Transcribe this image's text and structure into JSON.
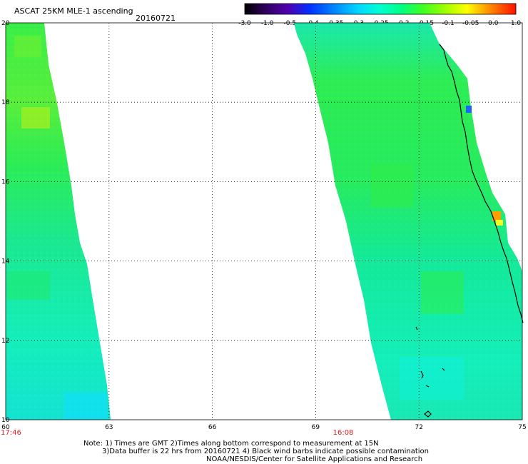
{
  "header": {
    "title": "ASCAT 25KM MLE-1 ascending",
    "date": "20160721"
  },
  "colorbar": {
    "labels": [
      "-3.0",
      "-1.0",
      "-0.5",
      "-0.4",
      "-0.35",
      "-0.3",
      "-0.25",
      "-0.2",
      "-0.15",
      "-0.1",
      "-0.05",
      "0.0",
      "1.0"
    ],
    "colors": [
      "#000000",
      "#3a0070",
      "#4000c0",
      "#0040ff",
      "#0090ff",
      "#00c8ff",
      "#00ffd8",
      "#00ff90",
      "#40ff40",
      "#a0ff20",
      "#ffff00",
      "#ff9000",
      "#ff2000"
    ]
  },
  "map": {
    "x_ticks": [
      "60",
      "63",
      "66",
      "69",
      "72",
      "75"
    ],
    "y_ticks": [
      "20",
      "18",
      "16",
      "14",
      "12",
      "10"
    ],
    "x_range": [
      60,
      75
    ],
    "y_range": [
      10,
      20
    ],
    "grid": "dotted",
    "pass_times": [
      {
        "lon": 60,
        "time": "17:46"
      },
      {
        "lon": 69.8,
        "time": "16:08"
      }
    ]
  },
  "notes": {
    "line1": "Note: 1) Times are GMT 2)Times along bottom correspond to measurement at 15N",
    "line2": "3)Data buffer is 22 hrs from 20160721 4) Black wind barbs indicate possible contamination",
    "line3": "NOAA/NESDIS/Center for Satellite Applications and Research"
  }
}
